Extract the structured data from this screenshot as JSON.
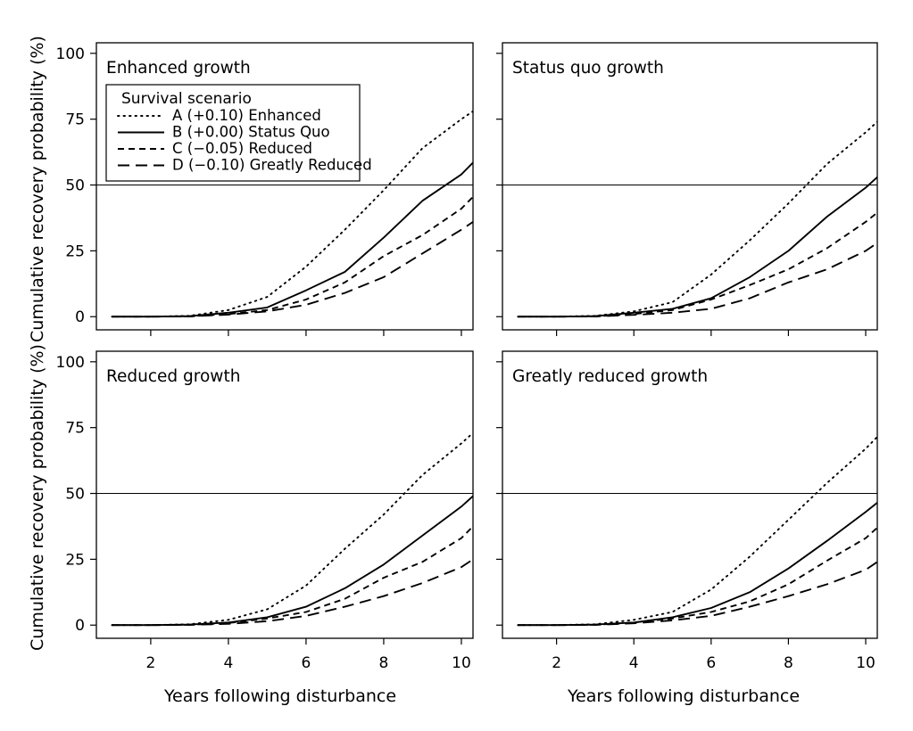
{
  "chart_data": [
    {
      "type": "line",
      "title": "Enhanced growth",
      "xlim": [
        0.6,
        10.3
      ],
      "ylim": [
        -5,
        104
      ],
      "xticks": [
        2,
        4,
        6,
        8,
        10
      ],
      "yticks": [
        0,
        25,
        50,
        75,
        100
      ],
      "reference_line": 50,
      "x": [
        1,
        2,
        3,
        4,
        5,
        6,
        7,
        8,
        9,
        10,
        10.3
      ],
      "series": [
        {
          "key": "A",
          "values": [
            0,
            0,
            0.3,
            2.5,
            7.5,
            19,
            33,
            48,
            64,
            75,
            78
          ]
        },
        {
          "key": "B",
          "values": [
            0,
            0,
            0.2,
            1.5,
            3.5,
            10,
            17,
            30,
            44,
            54,
            58.5
          ]
        },
        {
          "key": "C",
          "values": [
            0,
            0,
            0.1,
            1,
            2.5,
            6.5,
            13,
            23,
            31,
            41,
            45.5
          ]
        },
        {
          "key": "D",
          "values": [
            0,
            0,
            0.1,
            0.8,
            2,
            4.5,
            9,
            15,
            24,
            33,
            36
          ]
        }
      ]
    },
    {
      "type": "line",
      "title": "Status quo growth",
      "xlim": [
        0.6,
        10.3
      ],
      "ylim": [
        -5,
        104
      ],
      "xticks": [
        2,
        4,
        6,
        8,
        10
      ],
      "yticks": [
        0,
        25,
        50,
        75,
        100
      ],
      "reference_line": 50,
      "x": [
        1,
        2,
        3,
        4,
        5,
        6,
        7,
        8,
        9,
        10,
        10.3
      ],
      "series": [
        {
          "key": "A",
          "values": [
            0,
            0,
            0.3,
            2,
            5.5,
            16,
            29,
            43,
            58,
            70,
            74
          ]
        },
        {
          "key": "B",
          "values": [
            0,
            0,
            0.2,
            1.5,
            3,
            7,
            15,
            25,
            38,
            49,
            53
          ]
        },
        {
          "key": "C",
          "values": [
            0,
            0,
            0.1,
            1,
            2.5,
            6.5,
            12,
            18,
            26,
            36,
            39.5
          ]
        },
        {
          "key": "D",
          "values": [
            0,
            0,
            0.1,
            0.7,
            1.5,
            3,
            7,
            13,
            18,
            25,
            28
          ]
        }
      ]
    },
    {
      "type": "line",
      "title": "Reduced growth",
      "xlim": [
        0.6,
        10.3
      ],
      "ylim": [
        -5,
        104
      ],
      "xticks": [
        2,
        4,
        6,
        8,
        10
      ],
      "yticks": [
        0,
        25,
        50,
        75,
        100
      ],
      "reference_line": 50,
      "x": [
        1,
        2,
        3,
        4,
        5,
        6,
        7,
        8,
        9,
        10,
        10.3
      ],
      "series": [
        {
          "key": "A",
          "values": [
            0,
            0,
            0.3,
            2,
            6,
            15,
            29,
            42,
            57,
            69,
            73
          ]
        },
        {
          "key": "B",
          "values": [
            0,
            0,
            0.2,
            1,
            3,
            7,
            14,
            23,
            34,
            45,
            49
          ]
        },
        {
          "key": "C",
          "values": [
            0,
            0,
            0.1,
            0.8,
            2.5,
            5,
            10,
            18,
            24,
            33,
            37.5
          ]
        },
        {
          "key": "D",
          "values": [
            0,
            0,
            0.1,
            0.5,
            1.5,
            3.5,
            7,
            11,
            16,
            22,
            25
          ]
        }
      ]
    },
    {
      "type": "line",
      "title": "Greatly reduced growth",
      "xlim": [
        0.6,
        10.3
      ],
      "ylim": [
        -5,
        104
      ],
      "xticks": [
        2,
        4,
        6,
        8,
        10
      ],
      "yticks": [
        0,
        25,
        50,
        75,
        100
      ],
      "reference_line": 50,
      "x": [
        1,
        2,
        3,
        4,
        5,
        6,
        7,
        8,
        9,
        10,
        10.3
      ],
      "series": [
        {
          "key": "A",
          "values": [
            0,
            0,
            0.3,
            2,
            5,
            13.5,
            26,
            40,
            54,
            67,
            71.5
          ]
        },
        {
          "key": "B",
          "values": [
            0,
            0,
            0.2,
            1,
            3,
            6.5,
            12.5,
            21.5,
            32,
            43,
            46.5
          ]
        },
        {
          "key": "C",
          "values": [
            0,
            0,
            0.1,
            1,
            2.5,
            5,
            9,
            15.5,
            24.5,
            33,
            37
          ]
        },
        {
          "key": "D",
          "values": [
            0,
            0,
            0.1,
            0.7,
            1.8,
            3.5,
            7,
            11,
            15.5,
            21,
            24
          ]
        }
      ]
    }
  ],
  "legend": {
    "title": "Survival scenario",
    "location": "upper-left",
    "items": [
      {
        "key": "A",
        "label": "A (+0.10) Enhanced",
        "style": "dotted"
      },
      {
        "key": "B",
        "label": "B (+0.00) Status Quo",
        "style": "solid"
      },
      {
        "key": "C",
        "label": "C (−0.05) Reduced",
        "style": "short-dash"
      },
      {
        "key": "D",
        "label": "D (−0.10) Greatly Reduced",
        "style": "long-dash"
      }
    ]
  },
  "axes": {
    "ylabel": "Cumulative recovery probability (%)",
    "xlabel": "Years following disturbance"
  }
}
